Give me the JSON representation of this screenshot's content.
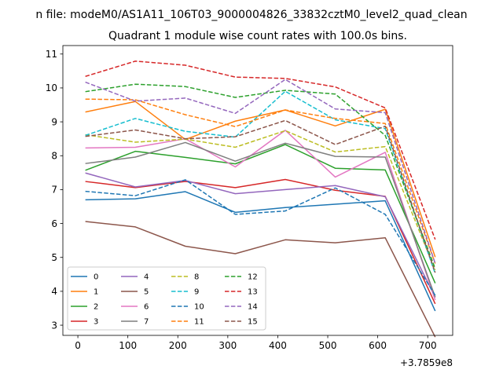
{
  "figure_title": "n file: modeM0/AS1A11_106T03_9000004826_33832cztM0_level2_quad_clean",
  "chart_data": {
    "type": "line",
    "title": "Quadrant 1 module wise count rates with 100.0s bins.",
    "xlabel": "",
    "ylabel": "",
    "x_offset_label": "+3.7859e8",
    "xlim": [
      -30,
      750
    ],
    "ylim": [
      2.7,
      11.25
    ],
    "xticks": [
      0,
      100,
      200,
      300,
      400,
      500,
      600,
      700
    ],
    "yticks": [
      3,
      4,
      5,
      6,
      7,
      8,
      9,
      10,
      11
    ],
    "grid": false,
    "legend_position": "lower-left",
    "x": [
      15,
      115,
      215,
      315,
      415,
      515,
      615,
      715
    ],
    "series": [
      {
        "name": "0",
        "color": "#1f77b4",
        "dash": "solid",
        "values": [
          6.7,
          6.73,
          6.94,
          6.33,
          6.47,
          6.57,
          6.67,
          3.42
        ]
      },
      {
        "name": "1",
        "color": "#ff7f0e",
        "dash": "solid",
        "values": [
          9.29,
          9.6,
          8.48,
          9.02,
          9.35,
          8.88,
          9.37,
          5.01
        ]
      },
      {
        "name": "2",
        "color": "#2ca02c",
        "dash": "solid",
        "values": [
          7.57,
          8.13,
          7.95,
          7.76,
          8.33,
          7.63,
          7.58,
          4.24
        ]
      },
      {
        "name": "3",
        "color": "#d62728",
        "dash": "solid",
        "values": [
          7.24,
          7.06,
          7.24,
          7.06,
          7.3,
          6.98,
          6.8,
          3.63
        ]
      },
      {
        "name": "4",
        "color": "#9467bd",
        "dash": "solid",
        "values": [
          7.49,
          7.08,
          7.27,
          6.88,
          7.0,
          7.12,
          6.79,
          3.82
        ]
      },
      {
        "name": "5",
        "color": "#8c564b",
        "dash": "solid",
        "values": [
          6.06,
          5.9,
          5.33,
          5.11,
          5.52,
          5.43,
          5.58,
          2.65
        ]
      },
      {
        "name": "6",
        "color": "#e377c2",
        "dash": "solid",
        "values": [
          8.23,
          8.25,
          8.5,
          7.67,
          8.75,
          7.37,
          8.1,
          3.74
        ]
      },
      {
        "name": "7",
        "color": "#7f7f7f",
        "dash": "solid",
        "values": [
          7.77,
          7.96,
          8.39,
          7.84,
          8.37,
          7.98,
          7.96,
          3.83
        ]
      },
      {
        "name": "8",
        "color": "#bcbd22",
        "dash": "dashed",
        "values": [
          8.62,
          8.4,
          8.49,
          8.25,
          8.74,
          8.11,
          8.27,
          4.62
        ]
      },
      {
        "name": "9",
        "color": "#17becf",
        "dash": "dashed",
        "values": [
          8.6,
          9.1,
          8.72,
          8.55,
          9.9,
          9.06,
          8.8,
          4.52
        ]
      },
      {
        "name": "10",
        "color": "#1f77b4",
        "dash": "dashed",
        "values": [
          6.95,
          6.82,
          7.29,
          6.27,
          6.37,
          7.05,
          6.27,
          3.88
        ]
      },
      {
        "name": "11",
        "color": "#ff7f0e",
        "dash": "dashed",
        "values": [
          9.67,
          9.65,
          9.21,
          8.86,
          9.35,
          9.1,
          8.95,
          4.82
        ]
      },
      {
        "name": "12",
        "color": "#2ca02c",
        "dash": "dashed",
        "values": [
          9.89,
          10.11,
          10.04,
          9.72,
          9.93,
          9.82,
          8.6,
          4.67
        ]
      },
      {
        "name": "13",
        "color": "#d62728",
        "dash": "dashed",
        "values": [
          10.34,
          10.79,
          10.67,
          10.32,
          10.28,
          10.03,
          9.41,
          5.53
        ]
      },
      {
        "name": "14",
        "color": "#9467bd",
        "dash": "dashed",
        "values": [
          10.17,
          9.61,
          9.7,
          9.25,
          10.25,
          9.38,
          9.27,
          4.82
        ]
      },
      {
        "name": "15",
        "color": "#8c564b",
        "dash": "dashed",
        "values": [
          8.57,
          8.76,
          8.5,
          8.56,
          9.04,
          8.33,
          8.87,
          4.55
        ]
      }
    ]
  }
}
